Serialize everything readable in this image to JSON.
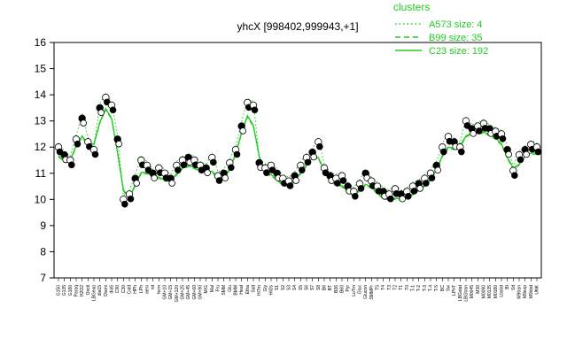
{
  "chart_data": {
    "type": "line",
    "title": "yhcX [998402,999943,+1]",
    "xlabel": "",
    "ylabel": "",
    "ylim": [
      7,
      16
    ],
    "yticks": [
      7,
      8,
      9,
      10,
      11,
      12,
      13,
      14,
      15,
      16
    ],
    "grid": false,
    "legend_position": "top-right",
    "legend": {
      "title": "clusters",
      "entries": [
        {
          "label": "A573 size: 4",
          "style": "dotted"
        },
        {
          "label": "B99 size: 35",
          "style": "dashed"
        },
        {
          "label": "C23 size: 192",
          "style": "solid"
        }
      ]
    },
    "colors": {
      "line": "#22cc22",
      "point_open": "#ffffff",
      "point_filled": "#000000"
    },
    "categories": [
      "G150",
      "G135",
      "G180",
      "Paraq",
      "H2O2",
      "Oxctl",
      "LBGexp",
      "dia15",
      "Diami",
      "dia5",
      "C90",
      "C30",
      "Cold",
      "HPh",
      "LPh",
      "aero",
      "nit",
      "ferm",
      "GM+10",
      "GM+15",
      "GM+120",
      "GM+25",
      "GM+45",
      "GM+60",
      "GM+90",
      "M/G",
      "Mal",
      "Fru",
      "SMM",
      "Glu",
      "BMM",
      "Heat",
      "Etha",
      "Salt",
      "HiTm",
      "Gly",
      "HiOs",
      "S1",
      "S2",
      "S3",
      "S4",
      "S5",
      "S6",
      "S7",
      "S8",
      "B6",
      "BT",
      "B36",
      "B60",
      "Pyr",
      "LoTm",
      "Gluc",
      "Glucon",
      "SMMPr",
      "T5",
      "T4",
      "T3",
      "T2",
      "T1",
      "T0",
      "T-1",
      "T-2",
      "T-3",
      "T-4",
      "T-5",
      "BC",
      "Sw",
      "LPhT",
      "LBGstat",
      "LBGtran",
      "M0045",
      "M30",
      "M0090",
      "M0135",
      "M0180",
      "Lbstat",
      "BI",
      "Sd",
      "M9tran",
      "M9exp",
      "M9stat",
      "UNK"
    ],
    "series": [
      {
        "values": [
          12.0,
          11.7,
          11.5,
          12.3,
          13.1,
          12.2,
          11.9,
          13.5,
          13.9,
          13.6,
          12.3,
          10.0,
          10.2,
          10.8,
          11.5,
          11.3,
          11.0,
          11.2,
          11.0,
          10.8,
          11.3,
          11.5,
          11.6,
          11.5,
          11.3,
          11.2,
          11.6,
          10.9,
          11.0,
          11.4,
          11.9,
          12.8,
          13.7,
          13.6,
          11.4,
          11.2,
          11.3,
          11.0,
          10.8,
          10.7,
          10.9,
          11.3,
          11.6,
          11.8,
          12.2,
          11.2,
          10.9,
          10.8,
          10.9,
          10.5,
          10.3,
          10.6,
          11.0,
          10.7,
          10.5,
          10.3,
          10.2,
          10.4,
          10.2,
          10.3,
          10.5,
          10.6,
          10.8,
          11.0,
          11.3,
          12.0,
          12.4,
          12.2,
          12.0,
          13.0,
          12.7,
          12.8,
          12.9,
          12.7,
          12.6,
          12.5,
          11.9,
          11.1,
          11.7,
          11.9,
          12.1,
          12.0
        ]
      }
    ]
  }
}
